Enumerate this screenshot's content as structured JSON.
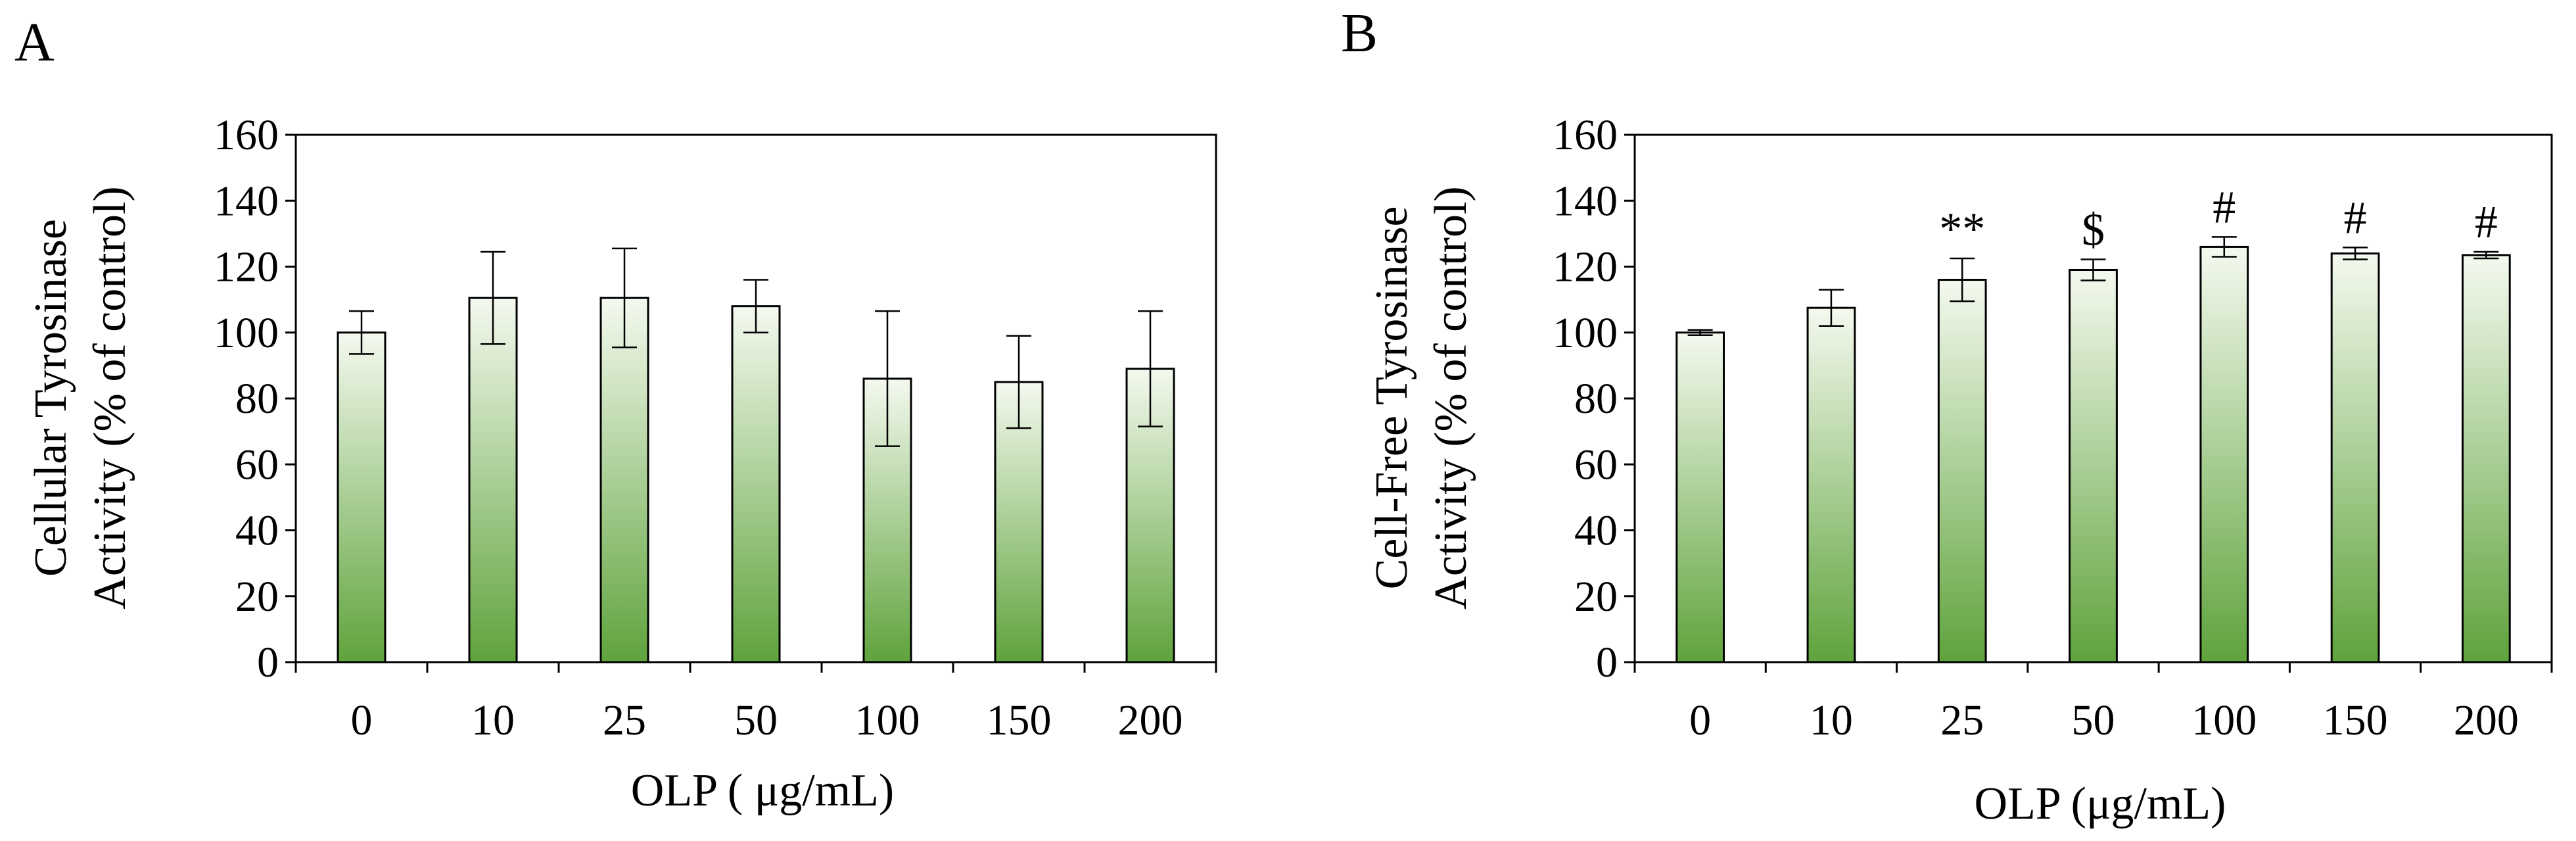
{
  "chart_data": [
    {
      "panel": "A",
      "type": "bar",
      "categories": [
        "0",
        "10",
        "25",
        "50",
        "100",
        "150",
        "200"
      ],
      "values": [
        100,
        110.5,
        110.5,
        108,
        86,
        85,
        89
      ],
      "errors": [
        6.5,
        14,
        15,
        8,
        20.5,
        14,
        17.5
      ],
      "annotations": [
        "",
        "",
        "",
        "",
        "",
        "",
        ""
      ],
      "xlabel": "OLP ( μg/mL)",
      "ylabel_line1": "Cellular Tyrosinase",
      "ylabel_line2": "Activity (% of control)",
      "ylim": [
        0,
        160
      ],
      "yticks": [
        "0",
        "20",
        "40",
        "60",
        "80",
        "100",
        "120",
        "140",
        "160"
      ],
      "grid": false,
      "colors": {
        "bar_top": "#f4f9ef",
        "bar_bottom": "#5fa33c",
        "edge": "#000000"
      }
    },
    {
      "panel": "B",
      "type": "bar",
      "categories": [
        "0",
        "10",
        "25",
        "50",
        "100",
        "150",
        "200"
      ],
      "values": [
        100,
        107.5,
        116,
        119,
        126,
        124,
        123.5
      ],
      "errors": [
        0.8,
        5.5,
        6.5,
        3.2,
        3,
        1.8,
        1
      ],
      "annotations": [
        "",
        "",
        "**",
        "$",
        "#",
        "#",
        "#"
      ],
      "xlabel": "OLP (μg/mL)",
      "ylabel_line1": "Cell-Free Tyrosinase",
      "ylabel_line2": "Activity (% of control)",
      "ylim": [
        0,
        160
      ],
      "yticks": [
        "0",
        "20",
        "40",
        "60",
        "80",
        "100",
        "120",
        "140",
        "160"
      ],
      "grid": false,
      "colors": {
        "bar_top": "#f4f9ef",
        "bar_bottom": "#5fa33c",
        "edge": "#000000"
      }
    }
  ]
}
